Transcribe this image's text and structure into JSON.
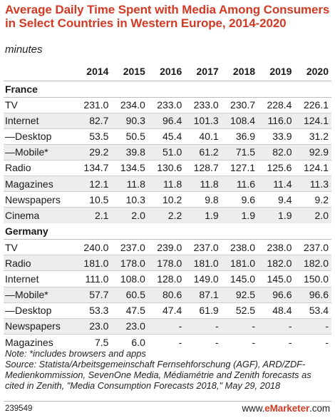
{
  "chart_data": {
    "type": "table",
    "title": "Average Daily Time Spent with Media Among Consumers in Select Countries in Western Europe, 2014-2020",
    "subtitle": "minutes",
    "columns": [
      "2014",
      "2015",
      "2016",
      "2017",
      "2018",
      "2019",
      "2020"
    ],
    "sections": [
      {
        "name": "France",
        "rows": [
          {
            "label": "TV",
            "values": [
              "231.0",
              "234.0",
              "233.0",
              "233.0",
              "230.7",
              "228.4",
              "226.1"
            ]
          },
          {
            "label": "Internet",
            "values": [
              "82.7",
              "90.3",
              "96.4",
              "101.3",
              "108.4",
              "116.0",
              "124.1"
            ]
          },
          {
            "label": "—Desktop",
            "values": [
              "53.5",
              "50.5",
              "45.4",
              "40.1",
              "36.9",
              "33.9",
              "31.2"
            ]
          },
          {
            "label": "—Mobile*",
            "values": [
              "29.2",
              "39.8",
              "51.0",
              "61.2",
              "71.5",
              "82.0",
              "92.9"
            ]
          },
          {
            "label": "Radio",
            "values": [
              "134.7",
              "134.5",
              "130.6",
              "128.7",
              "127.1",
              "125.6",
              "124.1"
            ]
          },
          {
            "label": "Magazines",
            "values": [
              "12.1",
              "11.8",
              "11.8",
              "11.8",
              "11.6",
              "11.4",
              "11.3"
            ]
          },
          {
            "label": "Newspapers",
            "values": [
              "10.5",
              "10.3",
              "10.2",
              "9.8",
              "9.6",
              "9.4",
              "9.2"
            ]
          },
          {
            "label": "Cinema",
            "values": [
              "2.1",
              "2.0",
              "2.2",
              "1.9",
              "1.9",
              "1.9",
              "2.0"
            ]
          }
        ]
      },
      {
        "name": "Germany",
        "rows": [
          {
            "label": "TV",
            "values": [
              "240.0",
              "237.0",
              "239.0",
              "237.0",
              "238.0",
              "238.0",
              "237.0"
            ]
          },
          {
            "label": "Radio",
            "values": [
              "181.0",
              "178.0",
              "178.0",
              "181.0",
              "181.0",
              "182.0",
              "182.0"
            ]
          },
          {
            "label": "Internet",
            "values": [
              "111.0",
              "108.0",
              "128.0",
              "149.0",
              "145.0",
              "145.0",
              "150.0"
            ]
          },
          {
            "label": "—Mobile*",
            "values": [
              "57.7",
              "60.5",
              "80.6",
              "87.1",
              "92.5",
              "96.6",
              "96.6"
            ]
          },
          {
            "label": "—Desktop",
            "values": [
              "53.3",
              "47.5",
              "47.4",
              "61.9",
              "52.5",
              "48.4",
              "53.4"
            ]
          },
          {
            "label": "Newspapers",
            "values": [
              "23.0",
              "23.0",
              "-",
              "-",
              "-",
              "-",
              "-"
            ]
          },
          {
            "label": "Magazines",
            "values": [
              "7.5",
              "6.0",
              "-",
              "-",
              "-",
              "-",
              "-"
            ]
          }
        ]
      }
    ]
  },
  "notes": "Note: *includes browsers and apps\nSource: Statista/Arbeitsgemeinschaft Fernsehforschung (AGF), ARD/ZDF-Medienkommission, SevenOne Media, Médiamétrie and Zenith forecasts as cited in Zenith, \"Media Consumption Forecasts 2018,\" May 29, 2018",
  "chart_id": "239549",
  "logo": {
    "prefix": "www.",
    "brand": "eMarketer",
    "suffix": ".com"
  },
  "colors": {
    "title": "#d23a26",
    "shade": "#ededed",
    "rule": "#bdbdbd"
  }
}
